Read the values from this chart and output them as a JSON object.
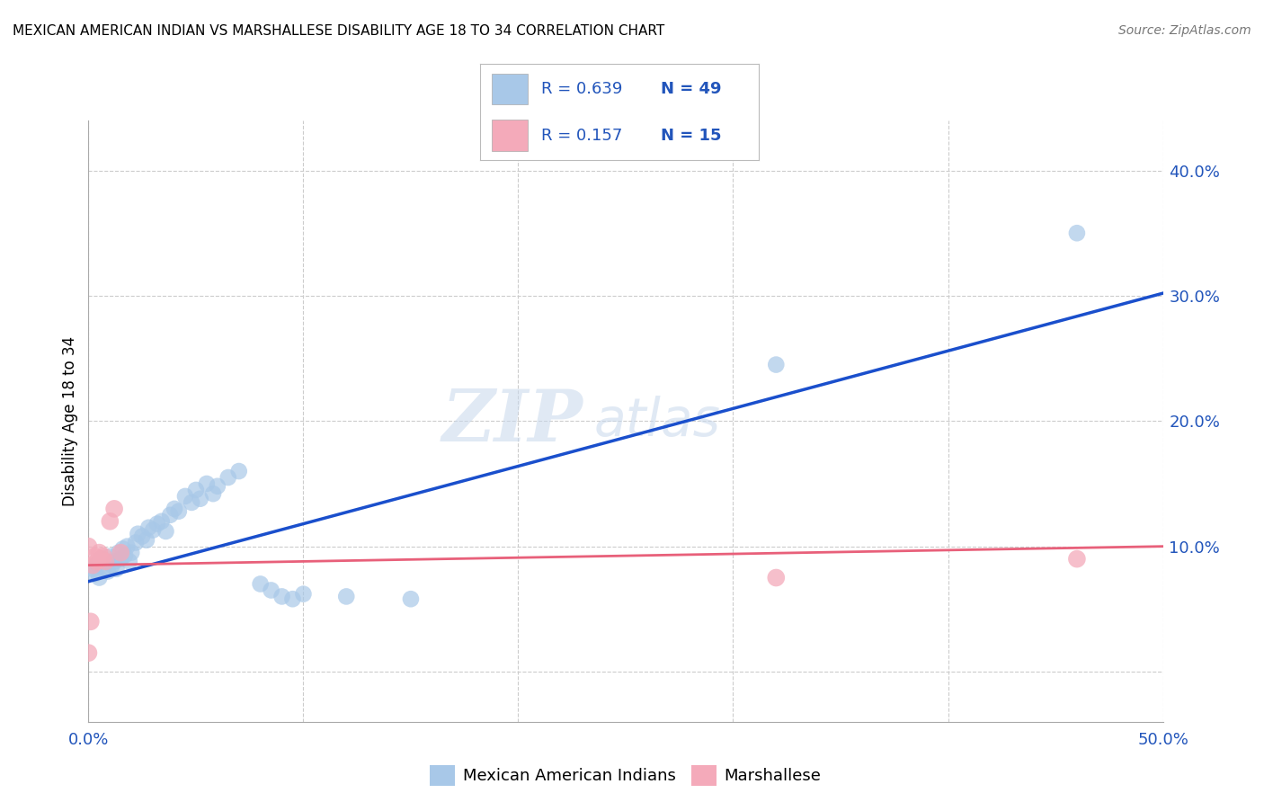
{
  "title": "MEXICAN AMERICAN INDIAN VS MARSHALLESE DISABILITY AGE 18 TO 34 CORRELATION CHART",
  "source": "Source: ZipAtlas.com",
  "ylabel": "Disability Age 18 to 34",
  "xlim": [
    0.0,
    0.5
  ],
  "ylim": [
    -0.04,
    0.44
  ],
  "xticks": [
    0.0,
    0.1,
    0.2,
    0.3,
    0.4,
    0.5
  ],
  "xticklabels": [
    "0.0%",
    "",
    "",
    "",
    "",
    "50.0%"
  ],
  "ytick_positions": [
    0.0,
    0.1,
    0.2,
    0.3,
    0.4
  ],
  "ytick_labels": [
    "",
    "10.0%",
    "20.0%",
    "30.0%",
    "40.0%"
  ],
  "legend_r1": "R = 0.639",
  "legend_n1": "N = 49",
  "legend_r2": "R = 0.157",
  "legend_n2": "N = 15",
  "blue_color": "#A8C8E8",
  "pink_color": "#F4AABA",
  "line_blue": "#1A4FCC",
  "line_pink": "#E8607A",
  "label_color": "#2255BB",
  "blue_scatter": [
    [
      0.002,
      0.082
    ],
    [
      0.003,
      0.078
    ],
    [
      0.004,
      0.086
    ],
    [
      0.005,
      0.075
    ],
    [
      0.006,
      0.09
    ],
    [
      0.007,
      0.083
    ],
    [
      0.008,
      0.088
    ],
    [
      0.009,
      0.08
    ],
    [
      0.01,
      0.092
    ],
    [
      0.011,
      0.085
    ],
    [
      0.012,
      0.088
    ],
    [
      0.013,
      0.082
    ],
    [
      0.014,
      0.095
    ],
    [
      0.015,
      0.09
    ],
    [
      0.016,
      0.098
    ],
    [
      0.017,
      0.093
    ],
    [
      0.018,
      0.1
    ],
    [
      0.019,
      0.088
    ],
    [
      0.02,
      0.095
    ],
    [
      0.022,
      0.103
    ],
    [
      0.023,
      0.11
    ],
    [
      0.025,
      0.108
    ],
    [
      0.027,
      0.105
    ],
    [
      0.028,
      0.115
    ],
    [
      0.03,
      0.113
    ],
    [
      0.032,
      0.118
    ],
    [
      0.034,
      0.12
    ],
    [
      0.036,
      0.112
    ],
    [
      0.038,
      0.125
    ],
    [
      0.04,
      0.13
    ],
    [
      0.042,
      0.128
    ],
    [
      0.045,
      0.14
    ],
    [
      0.048,
      0.135
    ],
    [
      0.05,
      0.145
    ],
    [
      0.052,
      0.138
    ],
    [
      0.055,
      0.15
    ],
    [
      0.058,
      0.142
    ],
    [
      0.06,
      0.148
    ],
    [
      0.065,
      0.155
    ],
    [
      0.07,
      0.16
    ],
    [
      0.08,
      0.07
    ],
    [
      0.085,
      0.065
    ],
    [
      0.09,
      0.06
    ],
    [
      0.095,
      0.058
    ],
    [
      0.1,
      0.062
    ],
    [
      0.12,
      0.06
    ],
    [
      0.15,
      0.058
    ],
    [
      0.32,
      0.245
    ],
    [
      0.46,
      0.35
    ]
  ],
  "pink_scatter": [
    [
      0.0,
      0.1
    ],
    [
      0.001,
      0.04
    ],
    [
      0.002,
      0.085
    ],
    [
      0.003,
      0.092
    ],
    [
      0.004,
      0.088
    ],
    [
      0.005,
      0.095
    ],
    [
      0.006,
      0.09
    ],
    [
      0.007,
      0.092
    ],
    [
      0.008,
      0.088
    ],
    [
      0.01,
      0.12
    ],
    [
      0.012,
      0.13
    ],
    [
      0.015,
      0.095
    ],
    [
      0.32,
      0.075
    ],
    [
      0.46,
      0.09
    ],
    [
      0.0,
      0.015
    ]
  ],
  "blue_line_x": [
    0.0,
    0.5
  ],
  "blue_line_y": [
    0.072,
    0.302
  ],
  "pink_line_x": [
    0.0,
    0.5
  ],
  "pink_line_y": [
    0.085,
    0.1
  ],
  "watermark_zip": "ZIP",
  "watermark_atlas": "atlas",
  "background_color": "#FFFFFF",
  "grid_color": "#CCCCCC"
}
